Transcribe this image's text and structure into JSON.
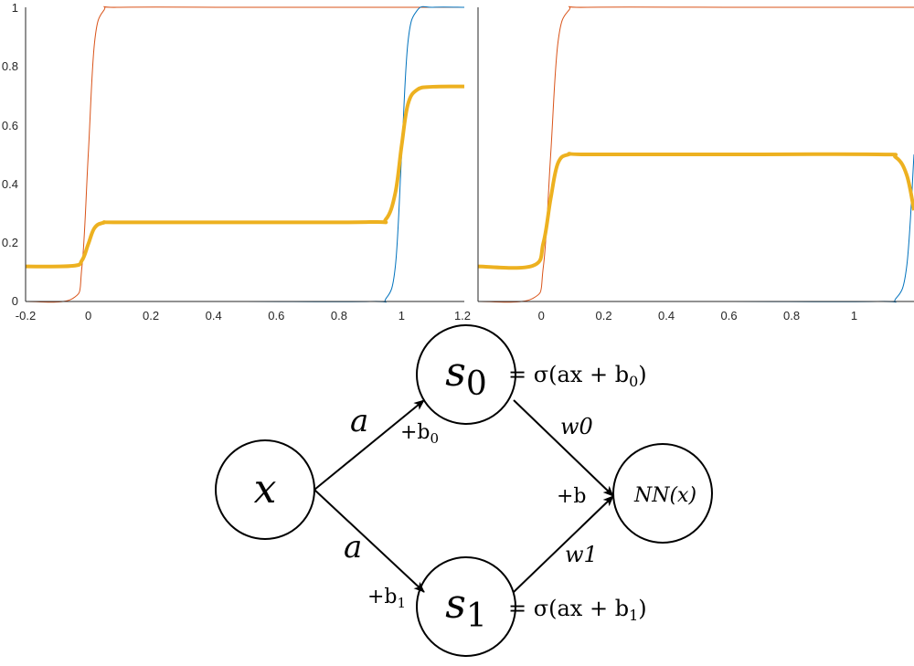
{
  "charts": {
    "yticks": [
      "0",
      "0.2",
      "0.4",
      "0.6",
      "0.8",
      "1"
    ],
    "left_xticks": [
      "-0.2",
      "0",
      "0.2",
      "0.4",
      "0.6",
      "0.8",
      "1",
      "1.2"
    ],
    "right_xticks": [
      "0",
      "0.2",
      "0.4",
      "0.6",
      "0.8",
      "1"
    ]
  },
  "chart_data": [
    {
      "type": "line",
      "xlim": [
        -0.2,
        1.2
      ],
      "ylim": [
        0,
        1
      ],
      "grid": false,
      "x": [
        -0.2,
        -0.05,
        -0.02,
        0,
        0.02,
        0.05,
        0.1,
        0.5,
        0.9,
        0.95,
        0.98,
        1.0,
        1.02,
        1.05,
        1.1,
        1.2
      ],
      "series": [
        {
          "color": "#D95319",
          "width": 1,
          "values": [
            0,
            0.01,
            0.12,
            0.5,
            0.88,
            0.99,
            1,
            1,
            1,
            1,
            1,
            1,
            1,
            1,
            1,
            1
          ]
        },
        {
          "color": "#0072BD",
          "width": 1,
          "values": [
            0,
            0,
            0,
            0,
            0,
            0,
            0,
            0,
            0,
            0.01,
            0.12,
            0.5,
            0.88,
            0.99,
            1,
            1
          ]
        },
        {
          "color": "#EDB120",
          "width": 4,
          "values": [
            0.119,
            0.121,
            0.14,
            0.195,
            0.25,
            0.268,
            0.269,
            0.269,
            0.27,
            0.28,
            0.37,
            0.53,
            0.67,
            0.72,
            0.73,
            0.731
          ]
        }
      ]
    },
    {
      "type": "line",
      "xlim": [
        -0.2,
        1.0
      ],
      "ylim": [
        0,
        1
      ],
      "grid": false,
      "x": [
        -0.2,
        -0.05,
        -0.02,
        0,
        0.02,
        0.05,
        0.1,
        0.5,
        0.9,
        0.95,
        0.98,
        1.0
      ],
      "series": [
        {
          "color": "#D95319",
          "width": 1,
          "values": [
            0,
            0.01,
            0.12,
            0.5,
            0.88,
            0.99,
            1,
            1,
            1,
            1,
            1,
            1
          ]
        },
        {
          "color": "#0072BD",
          "width": 1,
          "values": [
            0,
            0,
            0,
            0,
            0,
            0,
            0,
            0,
            0,
            0.01,
            0.12,
            0.5
          ]
        },
        {
          "color": "#EDB120",
          "width": 4,
          "values": [
            0.119,
            0.121,
            0.2,
            0.35,
            0.47,
            0.5,
            0.5,
            0.5,
            0.5,
            0.49,
            0.43,
            0.31
          ]
        }
      ]
    }
  ],
  "diagram": {
    "nodes": {
      "x": "x",
      "s0_base": "s",
      "s0_sub": "0",
      "s1_base": "s",
      "s1_sub": "1",
      "nn": "NN(x)"
    },
    "equations": {
      "s0_eq": "= σ(ax + b",
      "s0_eq_sub": "0",
      "s0_eq_close": ")",
      "s1_eq": "= σ(ax + b",
      "s1_eq_sub": "1",
      "s1_eq_close": ")"
    },
    "edges": {
      "a_top": "a",
      "a_bottom": "a",
      "plus_b0": "+b",
      "plus_b0_sub": "0",
      "plus_b1": "+b",
      "plus_b1_sub": "1",
      "w0": "w0",
      "w1": "w1",
      "plus_b": "+b"
    }
  }
}
